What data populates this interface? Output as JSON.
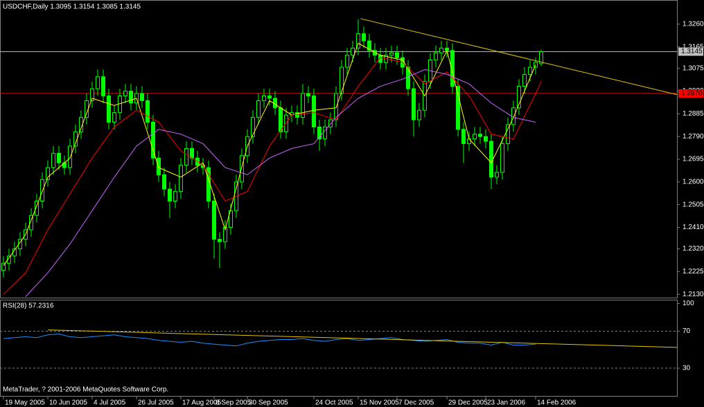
{
  "chart_data": [
    {
      "type": "candlestick",
      "title": "USDCHF,Daily  1.3095 1.3154 1.3085 1.3145",
      "color": "#00ff00",
      "xlim": [
        -0.625,
        121.5
      ],
      "ylim": [
        1.2116,
        1.3361
      ],
      "yticks": [
        {
          "value": 1.326,
          "label": "1.3260"
        },
        {
          "value": 1.3165,
          "label": "1.3165"
        },
        {
          "value": 1.3075,
          "label": "1.3075"
        },
        {
          "value": 1.298,
          "label": "1.2980"
        },
        {
          "value": 1.2885,
          "label": "1.2885"
        },
        {
          "value": 1.279,
          "label": "1.2790"
        },
        {
          "value": 1.2695,
          "label": "1.2695"
        },
        {
          "value": 1.26,
          "label": "1.2600"
        },
        {
          "value": 1.2505,
          "label": "1.2505"
        },
        {
          "value": 1.241,
          "label": "1.2410"
        },
        {
          "value": 1.232,
          "label": "1.2320"
        },
        {
          "value": 1.2225,
          "label": "1.2225"
        },
        {
          "value": 1.213,
          "label": "1.2130"
        }
      ],
      "xticks": [
        {
          "value": 0,
          "label": "19 May 2005"
        },
        {
          "value": 8,
          "label": "10 Jun 2005"
        },
        {
          "value": 16,
          "label": "4 Jul 2005"
        },
        {
          "value": 24,
          "label": "26 Jul 2005"
        },
        {
          "value": 32,
          "label": "17 Aug 2005"
        },
        {
          "value": 38,
          "label": "8 Sep 2005"
        },
        {
          "value": 44,
          "label": "30 Sep 2005"
        },
        {
          "value": 56,
          "label": "24 Oct 2005"
        },
        {
          "value": 64,
          "label": "15 Nov 2005"
        },
        {
          "value": 71,
          "label": "7 Dec 2005"
        },
        {
          "value": 80,
          "label": "29 Dec 2005"
        },
        {
          "value": 87,
          "label": "23 Jan 2006"
        },
        {
          "value": 96,
          "label": "14 Feb 2006"
        }
      ],
      "candles": [
        [
          1.223,
          1.229,
          1.22,
          1.226
        ],
        [
          1.226,
          1.232,
          1.223,
          1.229
        ],
        [
          1.229,
          1.235,
          1.226,
          1.232
        ],
        [
          1.232,
          1.239,
          1.229,
          1.236
        ],
        [
          1.236,
          1.243,
          1.233,
          1.24
        ],
        [
          1.24,
          1.249,
          1.237,
          1.246
        ],
        [
          1.246,
          1.255,
          1.243,
          1.252
        ],
        [
          1.252,
          1.264,
          1.249,
          1.261
        ],
        [
          1.261,
          1.269,
          1.258,
          1.266
        ],
        [
          1.266,
          1.275,
          1.263,
          1.272
        ],
        [
          1.272,
          1.275,
          1.265,
          1.268
        ],
        [
          1.268,
          1.271,
          1.263,
          1.266
        ],
        [
          1.266,
          1.278,
          1.263,
          1.275
        ],
        [
          1.275,
          1.284,
          1.272,
          1.281
        ],
        [
          1.281,
          1.29,
          1.278,
          1.287
        ],
        [
          1.287,
          1.297,
          1.284,
          1.294
        ],
        [
          1.294,
          1.302,
          1.291,
          1.299
        ],
        [
          1.299,
          1.307,
          1.296,
          1.304
        ],
        [
          1.304,
          1.307,
          1.293,
          1.296
        ],
        [
          1.296,
          1.299,
          1.282,
          1.285
        ],
        [
          1.285,
          1.292,
          1.282,
          1.289
        ],
        [
          1.289,
          1.299,
          1.286,
          1.296
        ],
        [
          1.296,
          1.301,
          1.293,
          1.298
        ],
        [
          1.298,
          1.301,
          1.29,
          1.293
        ],
        [
          1.293,
          1.3,
          1.29,
          1.297
        ],
        [
          1.297,
          1.3,
          1.291,
          1.294
        ],
        [
          1.294,
          1.297,
          1.282,
          1.285
        ],
        [
          1.285,
          1.288,
          1.267,
          1.27
        ],
        [
          1.27,
          1.273,
          1.26,
          1.263
        ],
        [
          1.263,
          1.266,
          1.254,
          1.257
        ],
        [
          1.257,
          1.26,
          1.245,
          1.252
        ],
        [
          1.252,
          1.259,
          1.249,
          1.256
        ],
        [
          1.256,
          1.27,
          1.253,
          1.267
        ],
        [
          1.267,
          1.277,
          1.264,
          1.274
        ],
        [
          1.274,
          1.277,
          1.267,
          1.27
        ],
        [
          1.27,
          1.273,
          1.264,
          1.267
        ],
        [
          1.267,
          1.27,
          1.263,
          1.266
        ],
        [
          1.266,
          1.269,
          1.249,
          1.252
        ],
        [
          1.252,
          1.255,
          1.228,
          1.236
        ],
        [
          1.236,
          1.239,
          1.224,
          1.235
        ],
        [
          1.235,
          1.244,
          1.232,
          1.241
        ],
        [
          1.241,
          1.251,
          1.238,
          1.248
        ],
        [
          1.248,
          1.263,
          1.245,
          1.26
        ],
        [
          1.26,
          1.274,
          1.257,
          1.271
        ],
        [
          1.271,
          1.282,
          1.268,
          1.279
        ],
        [
          1.279,
          1.29,
          1.276,
          1.287
        ],
        [
          1.287,
          1.297,
          1.284,
          1.294
        ],
        [
          1.294,
          1.299,
          1.291,
          1.296
        ],
        [
          1.296,
          1.299,
          1.292,
          1.295
        ],
        [
          1.295,
          1.298,
          1.288,
          1.291
        ],
        [
          1.291,
          1.294,
          1.278,
          1.281
        ],
        [
          1.281,
          1.291,
          1.278,
          1.288
        ],
        [
          1.288,
          1.292,
          1.285,
          1.289
        ],
        [
          1.289,
          1.292,
          1.284,
          1.287
        ],
        [
          1.287,
          1.301,
          1.284,
          1.297
        ],
        [
          1.297,
          1.3,
          1.293,
          1.296
        ],
        [
          1.296,
          1.299,
          1.28,
          1.283
        ],
        [
          1.283,
          1.286,
          1.273,
          1.278
        ],
        [
          1.278,
          1.286,
          1.275,
          1.283
        ],
        [
          1.283,
          1.289,
          1.28,
          1.286
        ],
        [
          1.286,
          1.3,
          1.283,
          1.297
        ],
        [
          1.297,
          1.311,
          1.294,
          1.308
        ],
        [
          1.308,
          1.316,
          1.305,
          1.313
        ],
        [
          1.313,
          1.319,
          1.31,
          1.316
        ],
        [
          1.316,
          1.328,
          1.313,
          1.322
        ],
        [
          1.322,
          1.325,
          1.316,
          1.319
        ],
        [
          1.319,
          1.322,
          1.312,
          1.315
        ],
        [
          1.315,
          1.318,
          1.31,
          1.313
        ],
        [
          1.313,
          1.316,
          1.307,
          1.31
        ],
        [
          1.31,
          1.316,
          1.307,
          1.313
        ],
        [
          1.313,
          1.317,
          1.31,
          1.314
        ],
        [
          1.314,
          1.317,
          1.309,
          1.312
        ],
        [
          1.312,
          1.315,
          1.305,
          1.308
        ],
        [
          1.308,
          1.311,
          1.296,
          1.299
        ],
        [
          1.299,
          1.302,
          1.279,
          1.286
        ],
        [
          1.286,
          1.293,
          1.283,
          1.29
        ],
        [
          1.29,
          1.305,
          1.287,
          1.302
        ],
        [
          1.302,
          1.314,
          1.299,
          1.311
        ],
        [
          1.311,
          1.317,
          1.308,
          1.314
        ],
        [
          1.314,
          1.319,
          1.311,
          1.316
        ],
        [
          1.316,
          1.319,
          1.312,
          1.315
        ],
        [
          1.315,
          1.318,
          1.297,
          1.3
        ],
        [
          1.3,
          1.303,
          1.279,
          1.282
        ],
        [
          1.282,
          1.285,
          1.268,
          1.276
        ],
        [
          1.276,
          1.281,
          1.273,
          1.278
        ],
        [
          1.278,
          1.283,
          1.275,
          1.28
        ],
        [
          1.28,
          1.283,
          1.276,
          1.279
        ],
        [
          1.279,
          1.282,
          1.274,
          1.277
        ],
        [
          1.277,
          1.28,
          1.257,
          1.262
        ],
        [
          1.262,
          1.267,
          1.259,
          1.264
        ],
        [
          1.264,
          1.279,
          1.261,
          1.276
        ],
        [
          1.276,
          1.287,
          1.273,
          1.284
        ],
        [
          1.284,
          1.294,
          1.281,
          1.291
        ],
        [
          1.291,
          1.303,
          1.288,
          1.3
        ],
        [
          1.3,
          1.308,
          1.297,
          1.305
        ],
        [
          1.305,
          1.311,
          1.302,
          1.308
        ],
        [
          1.308,
          1.312,
          1.305,
          1.31
        ],
        [
          1.3095,
          1.3154,
          1.3085,
          1.3145
        ]
      ],
      "series": [
        {
          "color": "#ffff00",
          "x": [
            0,
            4,
            8,
            12,
            16,
            20,
            24,
            28,
            32,
            36,
            40,
            44,
            48,
            52,
            56,
            60,
            64,
            68,
            72,
            76,
            80,
            84,
            88,
            92,
            96
          ],
          "values": [
            1.225,
            1.238,
            1.262,
            1.27,
            1.295,
            1.292,
            1.295,
            1.266,
            1.262,
            1.268,
            1.24,
            1.275,
            1.294,
            1.288,
            1.29,
            1.291,
            1.318,
            1.313,
            1.311,
            1.296,
            1.315,
            1.278,
            1.268,
            1.287,
            1.309
          ]
        },
        {
          "color": "#ff0000",
          "x": [
            0,
            4,
            8,
            12,
            16,
            20,
            24,
            28,
            32,
            36,
            40,
            44,
            48,
            52,
            56,
            60,
            64,
            68,
            72,
            76,
            80,
            84,
            88,
            92,
            96,
            97
          ],
          "values": [
            1.213,
            1.222,
            1.24,
            1.255,
            1.27,
            1.283,
            1.29,
            1.285,
            1.273,
            1.267,
            1.252,
            1.256,
            1.275,
            1.288,
            1.289,
            1.286,
            1.3,
            1.312,
            1.31,
            1.301,
            1.306,
            1.296,
            1.28,
            1.278,
            1.297,
            1.302
          ]
        },
        {
          "color": "#cc66ff",
          "x": [
            4,
            8,
            12,
            16,
            20,
            24,
            28,
            32,
            36,
            40,
            44,
            48,
            52,
            56,
            60,
            64,
            68,
            72,
            76,
            80,
            84,
            88,
            92,
            96
          ],
          "values": [
            1.212,
            1.222,
            1.234,
            1.248,
            1.262,
            1.275,
            1.282,
            1.28,
            1.276,
            1.266,
            1.263,
            1.27,
            1.274,
            1.276,
            1.287,
            1.295,
            1.3,
            1.303,
            1.307,
            1.305,
            1.301,
            1.293,
            1.287,
            1.285
          ]
        }
      ],
      "hlines": [
        {
          "value": 1.3145,
          "label": "1.3145",
          "color": "#c0c0c0"
        },
        {
          "value": 1.297,
          "label": "1.2970",
          "color": "#ff0000"
        }
      ],
      "trendlines": [
        {
          "x": [
            64.4,
            121.5
          ],
          "values": [
            1.3283,
            1.2965
          ],
          "color": "#e6c800"
        }
      ]
    },
    {
      "type": "line",
      "title": "RSI(28) 57.2316",
      "xlim": [
        -0.625,
        121.5
      ],
      "ylim": [
        0,
        104
      ],
      "yticks": [
        100,
        70,
        30
      ],
      "levels": [
        70,
        30
      ],
      "series": [
        {
          "color": "#1e90ff",
          "x": [
            0,
            2,
            4,
            6,
            8,
            10,
            12,
            14,
            16,
            18,
            20,
            22,
            24,
            26,
            28,
            30,
            32,
            34,
            36,
            38,
            40,
            42,
            44,
            46,
            48,
            50,
            52,
            54,
            56,
            58,
            60,
            62,
            64,
            66,
            68,
            70,
            72,
            74,
            76,
            78,
            80,
            82,
            84,
            86,
            88,
            90,
            92,
            94,
            96
          ],
          "values": [
            62,
            63,
            64,
            63,
            66,
            67,
            64,
            63,
            64,
            65,
            66,
            64,
            63,
            62,
            60,
            59,
            58,
            59,
            57,
            56,
            55,
            54,
            57,
            59,
            60,
            61,
            61,
            62,
            60,
            59,
            61,
            62,
            60,
            61,
            62,
            63,
            61,
            60,
            59,
            60,
            61,
            58,
            57,
            57,
            55,
            58,
            55,
            55,
            56
          ]
        }
      ],
      "trendlines": [
        {
          "x": [
            8,
            121.5
          ],
          "values": [
            71.4,
            52.5
          ],
          "color": "#e6c800"
        }
      ]
    }
  ],
  "footer": "MetaTrader, ? 2001-2006 MetaQuotes Software Corp."
}
